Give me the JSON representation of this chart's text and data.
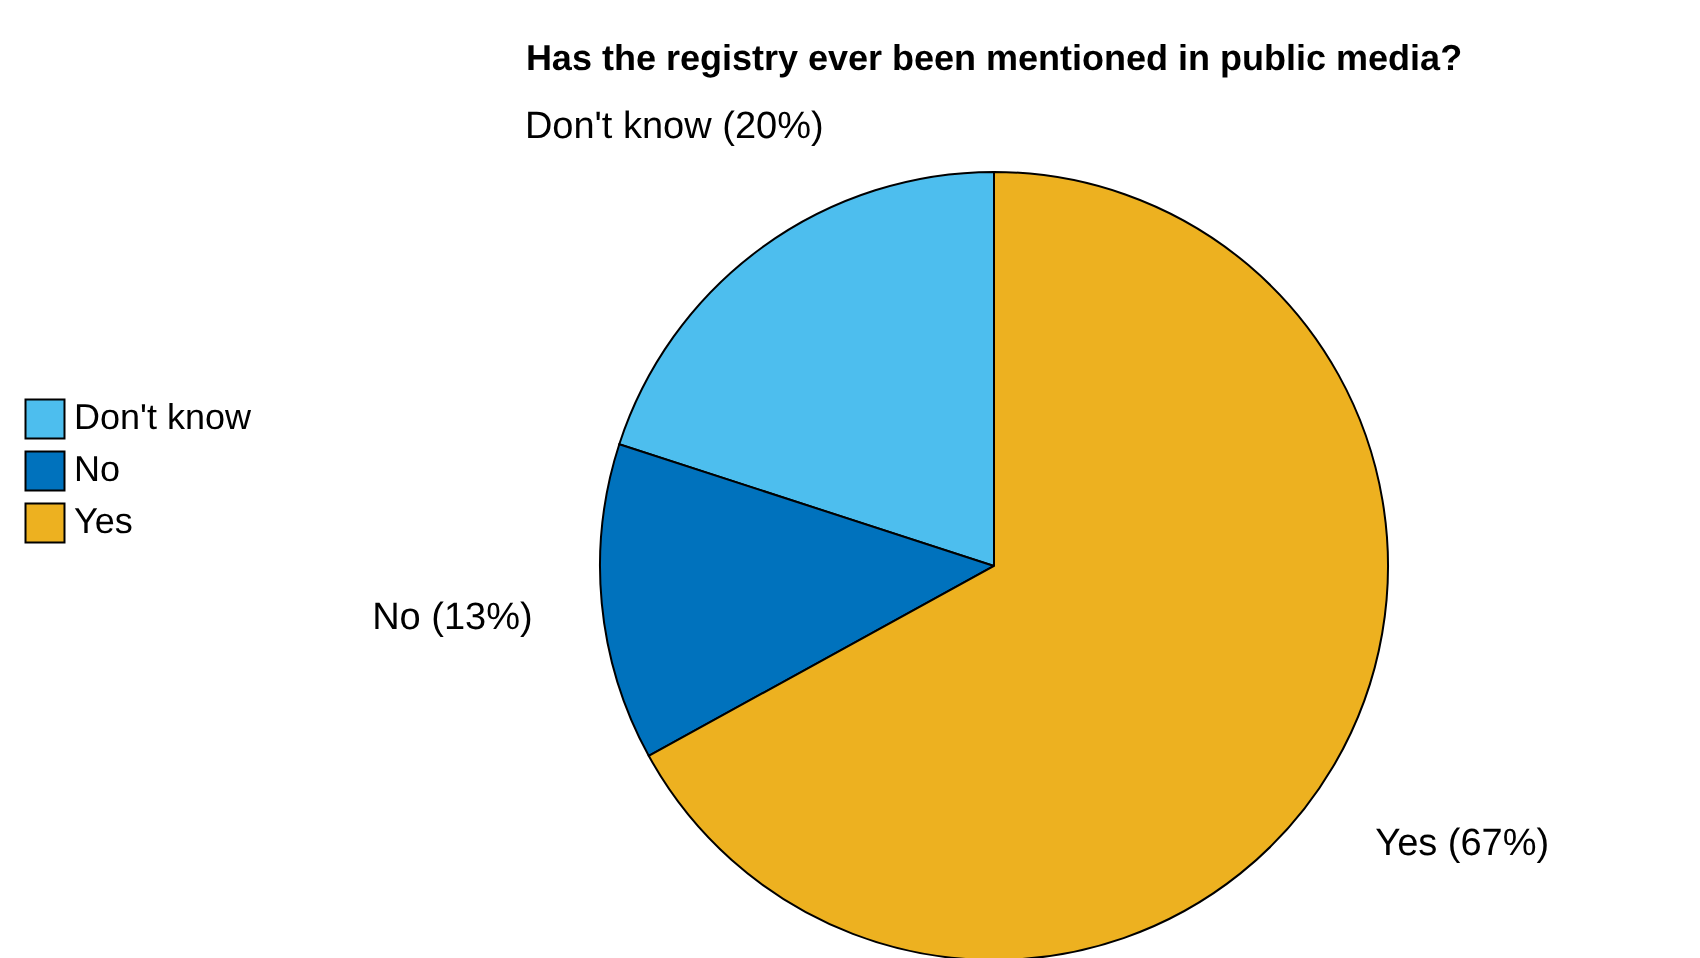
{
  "chart_data": {
    "type": "pie",
    "title": "Has the registry ever been mentioned in public media?",
    "categories": [
      "Don't know",
      "No",
      "Yes"
    ],
    "values": [
      20,
      13,
      67
    ],
    "colors": [
      "#4dbeee",
      "#0072bd",
      "#edb120"
    ],
    "value_labels": [
      "Don't know (20%)",
      "No (13%)",
      "Yes (67%)"
    ],
    "legend": "left"
  }
}
